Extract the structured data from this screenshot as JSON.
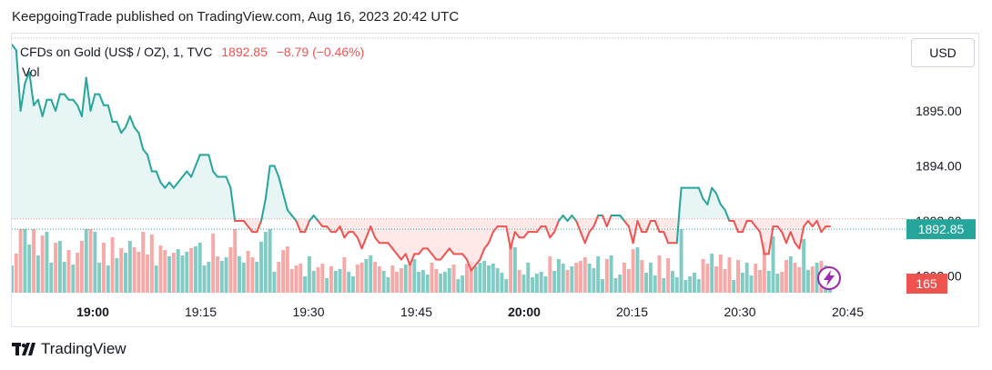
{
  "publisher": "KeepgoingTrade published on TradingView.com, Aug 16, 2023 20:42 UTC",
  "legend": {
    "symbol": "CFDs on Gold (US$ / OZ), 1, TVC",
    "last": "1892.85",
    "change": "−8.79 (−0.46%)",
    "volume_label": "Vol"
  },
  "currency_button": "USD",
  "brand": "TradingView",
  "colors": {
    "up": "#26a69a",
    "down": "#ef5350",
    "up_volume": "#80cbc4",
    "down_volume": "#f7a9a7",
    "area_fill": "#e0f2f1",
    "reference_line": "#ef9a9a",
    "lightning": "#9c27b0"
  },
  "chart_data": {
    "type": "line",
    "symbol": "CFDs on Gold (US$ / OZ), 1, TVC",
    "last_price_label": "1892.85",
    "volume_label": "165",
    "ylim": [
      1891.4,
      1896.4
    ],
    "y_ticks": [
      {
        "value": 1895.0,
        "label": "1895.00"
      },
      {
        "value": 1894.0,
        "label": "1894.00"
      },
      {
        "value": 1893.0,
        "label": "1893.00"
      },
      {
        "value": 1892.0,
        "label": "1892.00"
      }
    ],
    "x_ticks": [
      {
        "minute": 0,
        "label": "19:00",
        "bold": true
      },
      {
        "minute": 15,
        "label": "19:15",
        "bold": false
      },
      {
        "minute": 30,
        "label": "19:30",
        "bold": false
      },
      {
        "minute": 45,
        "label": "19:45",
        "bold": false
      },
      {
        "minute": 60,
        "label": "20:00",
        "bold": true
      },
      {
        "minute": 75,
        "label": "20:15",
        "bold": false
      },
      {
        "minute": 90,
        "label": "20:30",
        "bold": false
      },
      {
        "minute": 105,
        "label": "20:45",
        "bold": false
      }
    ],
    "xlim_minutes": [
      -11,
      113
    ],
    "reference_price": 1893.04,
    "price_series": [
      1896.2,
      1896.1,
      1895.0,
      1895.5,
      1895.7,
      1895.1,
      1895.2,
      1894.9,
      1895.2,
      1895.2,
      1895.0,
      1895.3,
      1895.3,
      1895.2,
      1895.2,
      1895.1,
      1894.9,
      1895.6,
      1895.0,
      1895.3,
      1895.3,
      1895.1,
      1895.1,
      1894.8,
      1894.8,
      1894.6,
      1894.7,
      1894.9,
      1894.7,
      1894.6,
      1894.3,
      1894.2,
      1893.9,
      1893.9,
      1893.7,
      1893.6,
      1893.7,
      1893.6,
      1893.7,
      1893.8,
      1893.9,
      1893.8,
      1894.0,
      1894.2,
      1894.2,
      1894.2,
      1893.9,
      1893.8,
      1893.8,
      1893.8,
      1893.6,
      1893.0,
      1893.0,
      1893.0,
      1892.9,
      1892.8,
      1892.8,
      1893.0,
      1893.4,
      1894.0,
      1894.0,
      1893.8,
      1893.5,
      1893.2,
      1893.1,
      1893.0,
      1892.8,
      1892.8,
      1893.0,
      1893.1,
      1893.0,
      1892.9,
      1892.9,
      1892.8,
      1892.8,
      1892.9,
      1892.7,
      1892.8,
      1892.8,
      1892.7,
      1892.5,
      1892.7,
      1892.9,
      1892.7,
      1892.6,
      1892.6,
      1892.6,
      1892.5,
      1892.4,
      1892.3,
      1892.4,
      1892.2,
      1892.4,
      1892.4,
      1892.5,
      1892.5,
      1892.4,
      1892.3,
      1892.3,
      1892.4,
      1892.5,
      1892.4,
      1892.4,
      1892.4,
      1892.3,
      1892.1,
      1892.2,
      1892.3,
      1892.5,
      1892.6,
      1892.8,
      1892.9,
      1892.9,
      1892.9,
      1892.5,
      1892.8,
      1892.7,
      1892.7,
      1892.8,
      1892.8,
      1892.8,
      1892.9,
      1892.9,
      1892.7,
      1892.8,
      1893.0,
      1893.1,
      1893.0,
      1893.1,
      1893.0,
      1892.8,
      1892.6,
      1892.8,
      1892.9,
      1893.1,
      1893.1,
      1892.9,
      1893.1,
      1893.1,
      1893.1,
      1893.0,
      1892.9,
      1892.6,
      1893.0,
      1892.8,
      1892.8,
      1893.0,
      1893.0,
      1892.8,
      1892.8,
      1892.6,
      1892.6,
      1892.6,
      1893.6,
      1893.6,
      1893.6,
      1893.6,
      1893.6,
      1893.4,
      1893.3,
      1893.6,
      1893.5,
      1893.3,
      1893.2,
      1893.0,
      1893.0,
      1892.8,
      1892.8,
      1893.0,
      1893.0,
      1892.9,
      1892.8,
      1892.4,
      1892.4,
      1892.9,
      1892.9,
      1892.8,
      1892.6,
      1892.8,
      1892.6,
      1892.5,
      1892.9,
      1893.0,
      1892.9,
      1893.0,
      1892.8,
      1892.9,
      1892.9
    ]
  }
}
